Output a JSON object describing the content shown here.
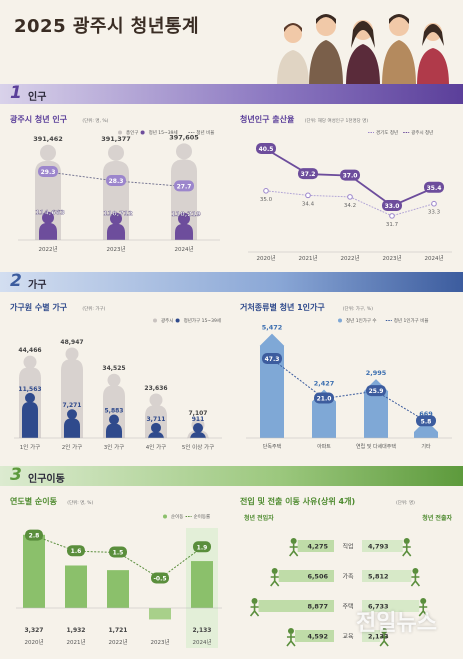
{
  "header": {
    "title": "2025 광주시 청년통계"
  },
  "sections": [
    {
      "num": "1",
      "label": "인구"
    },
    {
      "num": "2",
      "label": "가구"
    },
    {
      "num": "3",
      "label": "인구이동"
    }
  ],
  "watermark": "전일뉴스",
  "colors": {
    "purple": "#6d4d9c",
    "grey": "#c9c3c0",
    "blue": "#7fa8d6",
    "navy": "#2f4a8c",
    "green": "#8bc06b",
    "darkgreen": "#5a8e3c"
  },
  "chart_data": [
    {
      "id": "population",
      "type": "bar",
      "title": "광주시 청년 인구",
      "unit": "(단위: 명, %)",
      "legend": [
        "총인구",
        "청년 15~39세",
        "청년 비율"
      ],
      "categories": [
        "2022년",
        "2023년",
        "2024년"
      ],
      "series": [
        {
          "name": "총인구",
          "values": [
            391462,
            391377,
            397605
          ],
          "labels": [
            "391,462",
            "391,377",
            "397,605"
          ]
        },
        {
          "name": "청년 15~39세",
          "values": [
            114663,
            110712,
            110219
          ],
          "labels": [
            "114,663",
            "110,712",
            "110,219"
          ]
        },
        {
          "name": "청년 비율",
          "values": [
            29.3,
            28.3,
            27.7
          ]
        }
      ]
    },
    {
      "id": "birthrate",
      "type": "line",
      "title": "청년인구 출산율",
      "unit": "(단위: 해당 여성인구 1천명당 명)",
      "legend": [
        "경기도 청년",
        "광주시 청년"
      ],
      "x": [
        "2020년",
        "2021년",
        "2022년",
        "2023년",
        "2024년"
      ],
      "series": [
        {
          "name": "경기도 청년",
          "values": [
            35.0,
            34.4,
            34.2,
            31.7,
            33.3
          ]
        },
        {
          "name": "광주시 청년",
          "values": [
            40.5,
            37.2,
            37.0,
            33.0,
            35.4
          ]
        }
      ]
    },
    {
      "id": "household",
      "type": "bar",
      "title": "가구원 수별 가구",
      "unit": "(단위: 가구)",
      "legend": [
        "광주시",
        "청년가구 15~39세"
      ],
      "categories": [
        "1인 가구",
        "2인 가구",
        "3인 가구",
        "4인 가구",
        "5인 이상 가구"
      ],
      "series": [
        {
          "name": "광주시",
          "values": [
            44466,
            48947,
            34525,
            23636,
            7107
          ],
          "labels": [
            "44,466",
            "48,947",
            "34,525",
            "23,636",
            "7,107"
          ]
        },
        {
          "name": "청년가구 15~39세",
          "values": [
            11563,
            7271,
            5883,
            3711,
            911
          ],
          "labels": [
            "11,563",
            "7,271",
            "5,883",
            "3,711",
            "911"
          ]
        }
      ]
    },
    {
      "id": "single",
      "type": "bar",
      "title": "거처종류별 청년 1인가구",
      "unit": "(단위: 가구, %)",
      "legend": [
        "청년 1인가구 수",
        "청년 1인가구 비율"
      ],
      "categories": [
        "단독주택",
        "아파트",
        "연립 및 다세대주택",
        "기타"
      ],
      "series": [
        {
          "name": "청년 1인가구 수",
          "values": [
            5472,
            2427,
            2995,
            669
          ],
          "labels": [
            "5,472",
            "2,427",
            "2,995",
            "669"
          ]
        },
        {
          "name": "청년 1인가구 비율",
          "values": [
            47.3,
            21.0,
            25.9,
            5.8
          ]
        }
      ]
    },
    {
      "id": "migration",
      "type": "bar",
      "title": "연도별 순이동",
      "unit": "(단위: 명, %)",
      "legend": [
        "순이동",
        "순이동률"
      ],
      "categories": [
        "2020년",
        "2021년",
        "2022년",
        "2023년",
        "2024년"
      ],
      "series": [
        {
          "name": "순이동",
          "values": [
            3327,
            1932,
            1721,
            -520,
            2133
          ],
          "labels": [
            "3,327",
            "1,932",
            "1,721",
            "-520",
            "2,133"
          ]
        },
        {
          "name": "순이동률",
          "values": [
            2.8,
            1.6,
            1.5,
            -0.5,
            1.9
          ]
        }
      ]
    },
    {
      "id": "reasons",
      "type": "bar",
      "title": "전입 및 전출 이동 사유(상위 4개)",
      "unit": "(단위: 명)",
      "left_label": "청년 전입자",
      "right_label": "청년 전출자",
      "categories": [
        "직업",
        "가족",
        "주택",
        "교육"
      ],
      "series": [
        {
          "name": "청년 전입자",
          "values": [
            4275,
            6506,
            8877,
            4592
          ],
          "labels": [
            "4,275",
            "6,506",
            "8,877",
            "4,592"
          ]
        },
        {
          "name": "청년 전출자",
          "values": [
            4793,
            5812,
            6733,
            2133
          ],
          "labels": [
            "4,793",
            "5,812",
            "6,733",
            "2,133"
          ]
        }
      ]
    }
  ]
}
